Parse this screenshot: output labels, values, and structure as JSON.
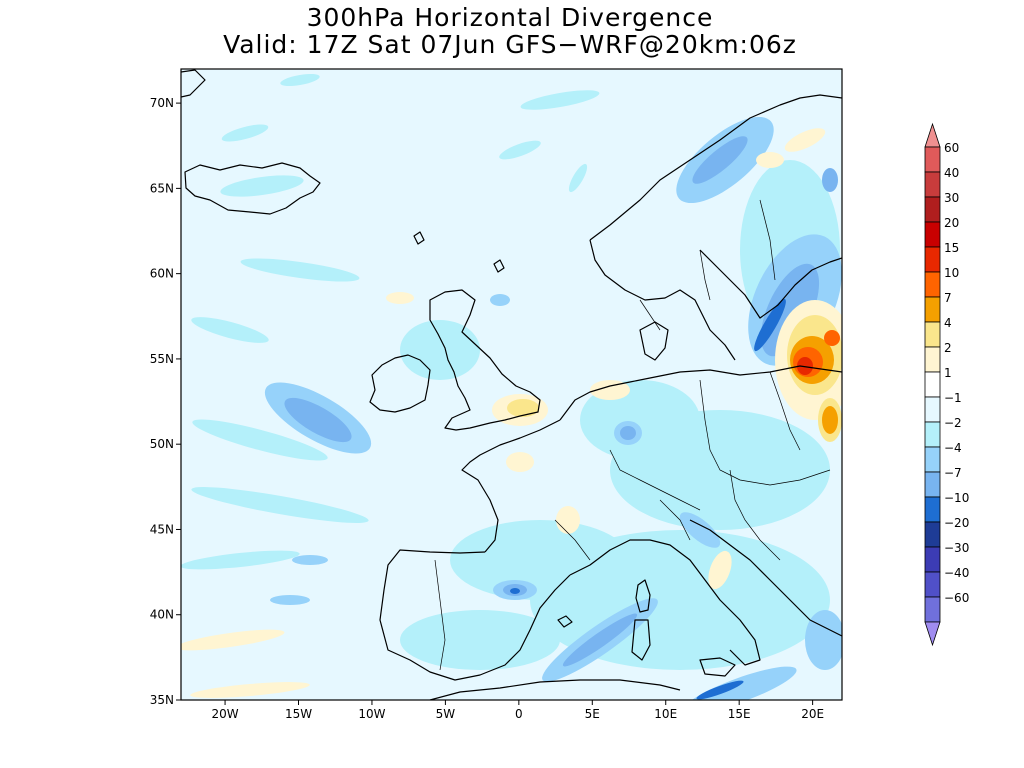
{
  "title": {
    "line1": "300hPa Horizontal Divergence",
    "line2": "Valid: 17Z Sat 07Jun GFS−WRF@20km:06z"
  },
  "map": {
    "lon_range": [
      -23,
      22
    ],
    "lat_range": [
      35,
      72
    ],
    "lon_ticks": [
      "20W",
      "15W",
      "10W",
      "5W",
      "0",
      "5E",
      "10E",
      "15E",
      "20E"
    ],
    "lat_ticks": [
      "35N",
      "40N",
      "45N",
      "50N",
      "55N",
      "60N",
      "65N",
      "70N"
    ]
  },
  "colorbar": {
    "labels": [
      "60",
      "40",
      "30",
      "20",
      "15",
      "10",
      "7",
      "4",
      "2",
      "1",
      "−1",
      "−2",
      "−4",
      "−7",
      "−10",
      "−20",
      "−30",
      "−40",
      "−60"
    ],
    "colors": [
      "#f09090",
      "#e05a5a",
      "#c83c3c",
      "#b01e1e",
      "#c80000",
      "#e82800",
      "#ff6400",
      "#f5a000",
      "#fae68c",
      "#fff5d2",
      "#ffffff",
      "#e6f8ff",
      "#b4f0fa",
      "#96d2fa",
      "#78b4f0",
      "#1e6ed2",
      "#1e3c96",
      "#3c3cb4",
      "#5050c8",
      "#7070dc",
      "#a08cf0"
    ]
  }
}
